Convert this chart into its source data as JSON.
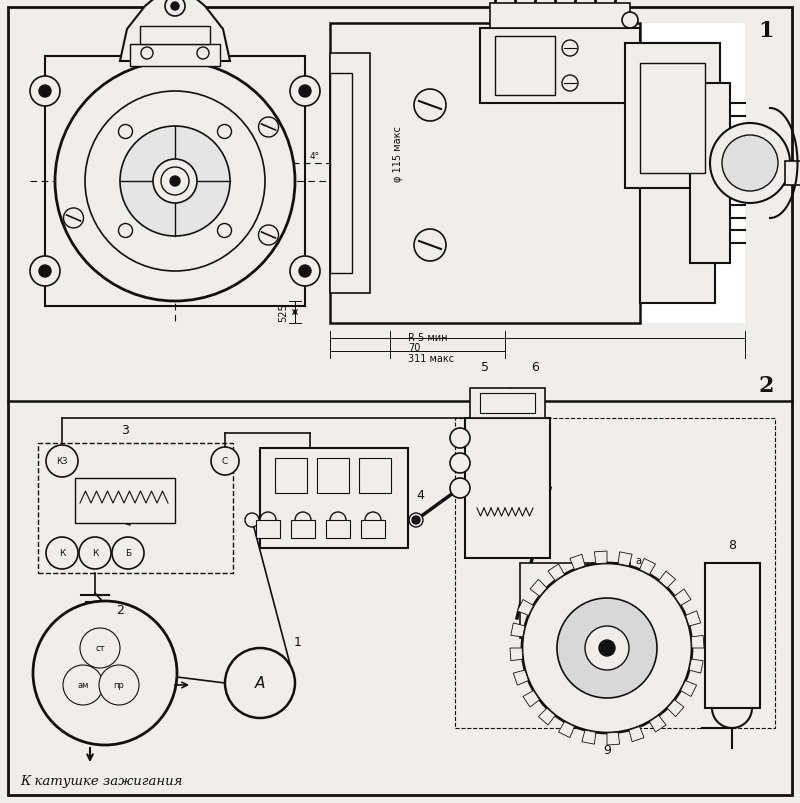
{
  "bg": "#f0eeea",
  "lc": "#111111",
  "panel1_num": "1",
  "panel2_num": "2",
  "text_ignition": "К катушке зажигания",
  "fig_w": 8.0,
  "fig_h": 8.04,
  "dpi": 100
}
